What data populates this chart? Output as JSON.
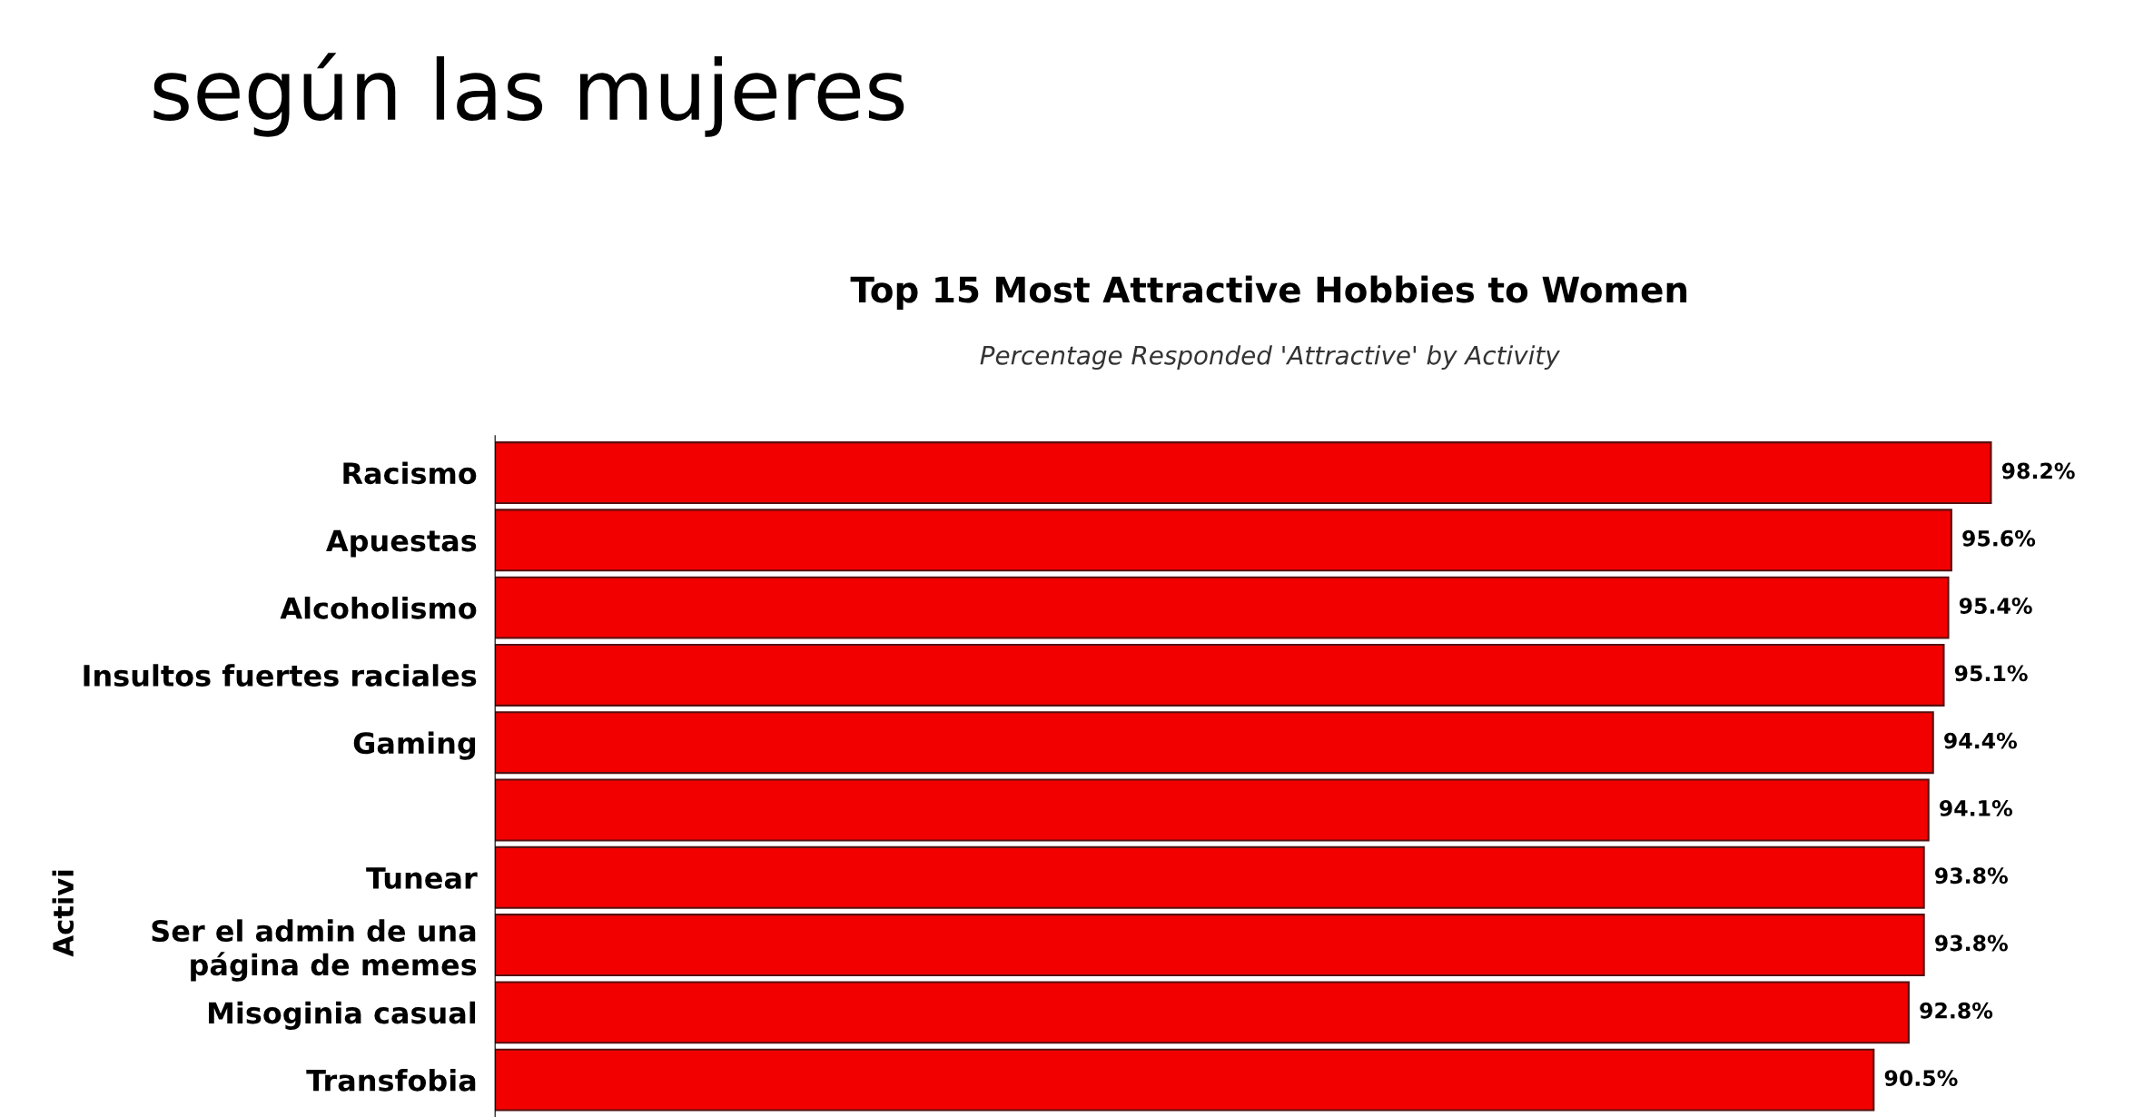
{
  "chart_data": {
    "type": "bar",
    "orientation": "horizontal",
    "title": "Top 15 Most Attractive Hobbies to Women",
    "subtitle": "Percentage Responded 'Attractive' by Activity",
    "annotations": [
      "según las mujeres"
    ],
    "ylabel": "Activi",
    "categories": [
      "Racismo",
      "Apuestas",
      "Alcoholismo",
      "Insultos fuertes raciales",
      "Gaming",
      null,
      "Tunear",
      "Ser el admin de una\npágina de memes",
      "Misoginia casual",
      "Transfobia"
    ],
    "values": [
      98.2,
      95.6,
      95.4,
      95.1,
      94.4,
      94.1,
      93.8,
      93.8,
      92.8,
      90.5
    ],
    "value_labels": [
      "98.2%",
      "95.6%",
      "95.4%",
      "95.1%",
      "94.4%",
      "94.1%",
      "93.8%",
      "93.8%",
      "92.8%",
      "90.5%"
    ],
    "color": "#f20000",
    "tick_labels": "y",
    "grid": false,
    "legend": false
  }
}
